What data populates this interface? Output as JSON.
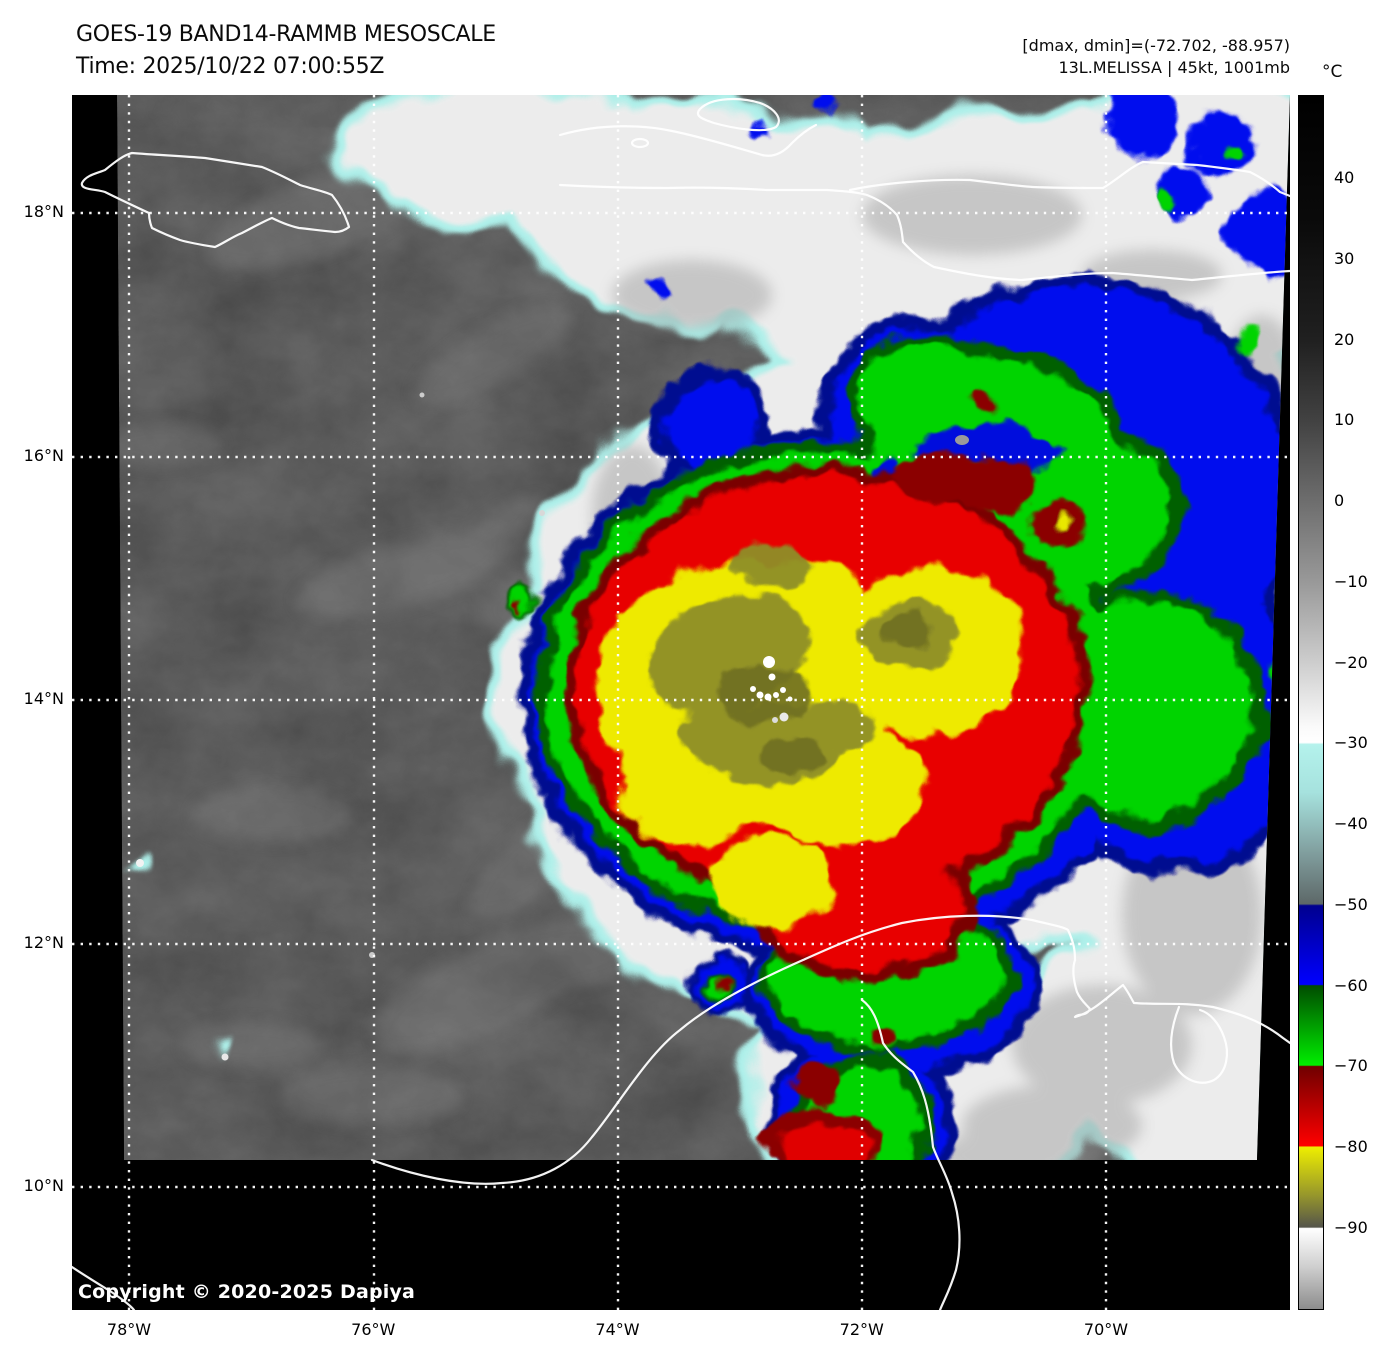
{
  "header": {
    "title": "GOES-19 BAND14-RAMMB MESOSCALE",
    "time": "Time: 2025/10/22 07:00:55Z",
    "range_info": "[dmax, dmin]=(-72.702, -88.957)",
    "storm_info": "13L.MELISSA | 45kt, 1001mb"
  },
  "colorbar": {
    "unit": "°C",
    "ticks": [
      "40",
      "30",
      "20",
      "10",
      "0",
      "−10",
      "−20",
      "−30",
      "−40",
      "−50",
      "−60",
      "−70",
      "−80",
      "−90"
    ]
  },
  "map": {
    "copyright": "Copyright © 2020-2025 Dapiya",
    "lat_labels": [
      "18°N",
      "16°N",
      "14°N",
      "12°N",
      "10°N"
    ],
    "lon_labels": [
      "78°W",
      "76°W",
      "74°W",
      "72°W",
      "70°W"
    ]
  }
}
